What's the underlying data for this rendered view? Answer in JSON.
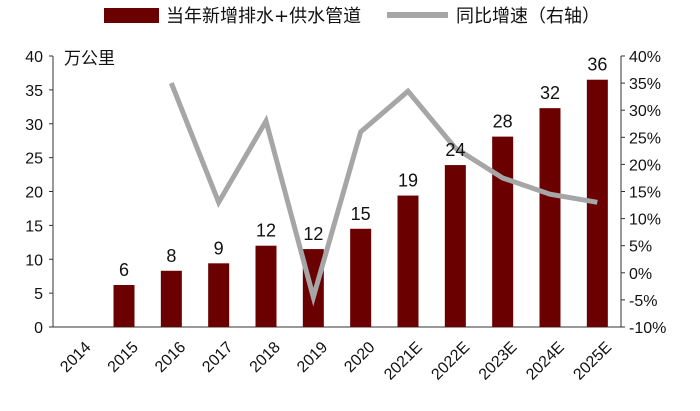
{
  "chart_data": {
    "type": "bar",
    "unit_label": "万公里",
    "categories": [
      "2014",
      "2015",
      "2016",
      "2017",
      "2018",
      "2019",
      "2020",
      "2021E",
      "2022E",
      "2023E",
      "2024E",
      "2025E"
    ],
    "series": [
      {
        "name": "当年新增排水+供水管道",
        "type": "bar",
        "axis": "left",
        "color": "#6B0000",
        "values": [
          null,
          6.2,
          8.3,
          9.4,
          12.0,
          11.5,
          14.5,
          19.4,
          23.9,
          28.1,
          32.3,
          36.5
        ],
        "labels": [
          "",
          "6",
          "8",
          "9",
          "12",
          "12",
          "15",
          "19",
          "24",
          "28",
          "32",
          "36"
        ]
      },
      {
        "name": "同比增速（右轴）",
        "type": "line",
        "axis": "right",
        "color": "#A6A6A6",
        "values": [
          null,
          null,
          0.35,
          0.13,
          0.28,
          -0.045,
          0.26,
          0.335,
          0.23,
          0.175,
          0.145,
          0.13
        ]
      }
    ],
    "y_left": {
      "min": 0,
      "max": 40,
      "ticks": [
        "0",
        "5",
        "10",
        "15",
        "20",
        "25",
        "30",
        "35",
        "40"
      ]
    },
    "y_right": {
      "min": -0.1,
      "max": 0.4,
      "ticks": [
        "-10%",
        "-5%",
        "0%",
        "5%",
        "10%",
        "15%",
        "20%",
        "25%",
        "30%",
        "35%",
        "40%"
      ]
    },
    "legend_position": "top"
  }
}
